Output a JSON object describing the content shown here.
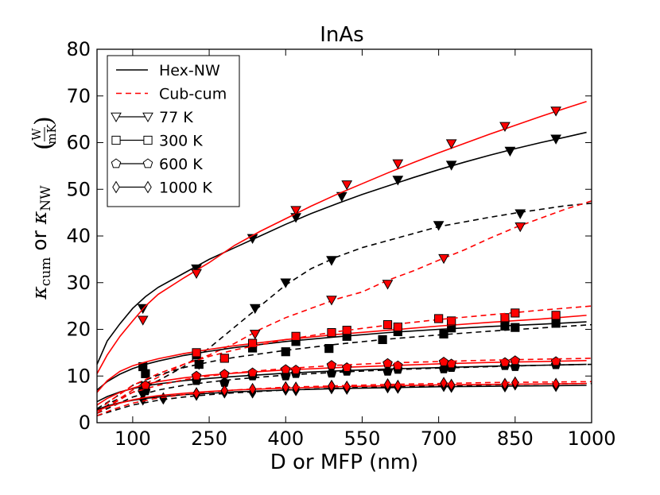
{
  "chart_data": {
    "type": "line",
    "title": "InAs",
    "xlabel": "D or MFP (nm)",
    "ylabel": "κ_cum or κ_NW (W/mK)",
    "ylabel_parts": {
      "kappa": "κ",
      "sub_cum": "cum",
      "or": " or ",
      "sub_nw": "NW",
      "unit_num": "W",
      "unit_den": "mK"
    },
    "xlim": [
      30,
      1000
    ],
    "ylim": [
      0,
      80
    ],
    "xticks": [
      100,
      250,
      400,
      550,
      700,
      850,
      1000
    ],
    "yticks": [
      0,
      10,
      20,
      30,
      40,
      50,
      60,
      70,
      80
    ],
    "grid": false,
    "legend_position": "top-left",
    "legend": {
      "lines": [
        {
          "label": "Hex-NW",
          "style": "solid",
          "color": "#000000"
        },
        {
          "label": "Cub-cum",
          "style": "dashed",
          "color": "#ff0000"
        }
      ],
      "markers": [
        {
          "label": "77 K",
          "marker": "triangle-down"
        },
        {
          "label": "300 K",
          "marker": "square"
        },
        {
          "label": "600 K",
          "marker": "pentagon"
        },
        {
          "label": "1000 K",
          "marker": "diamond"
        }
      ]
    },
    "series": [
      {
        "name": "Hex-NW 77 K",
        "group": "Hex-NW",
        "temperature": "77 K",
        "model": "nw",
        "line_color": "#000000",
        "line_style": "solid",
        "line_x": [
          30,
          50,
          75,
          100,
          125,
          150,
          200,
          250,
          300,
          350,
          400,
          450,
          500,
          550,
          600,
          650,
          700,
          750,
          800,
          850,
          900,
          950,
          990
        ],
        "line_y": [
          12.5,
          17.5,
          21.2,
          24.5,
          27.0,
          29.0,
          32.0,
          35.0,
          37.5,
          40.0,
          42.5,
          44.8,
          46.9,
          48.9,
          50.7,
          52.5,
          54.2,
          55.8,
          57.3,
          58.7,
          60.0,
          61.2,
          62.2
        ],
        "marker": "triangle-down",
        "marker_color": "#000000",
        "markers_x": [
          120,
          225,
          335,
          420,
          510,
          620,
          725,
          840,
          930
        ],
        "markers_y": [
          24.5,
          33.0,
          39.5,
          44.0,
          48.5,
          52.0,
          55.2,
          58.2,
          60.8
        ]
      },
      {
        "name": "Hex-cum 77 K",
        "group": "Hex-NW",
        "temperature": "77 K",
        "model": "cum",
        "line_color": "#000000",
        "line_style": "dashed",
        "line_x": [
          30,
          60,
          100,
          150,
          200,
          250,
          300,
          350,
          400,
          450,
          500,
          550,
          600,
          650,
          700,
          750,
          800,
          850,
          900,
          950,
          1000
        ],
        "line_y": [
          2.0,
          4.5,
          6.5,
          9.0,
          12.0,
          16.0,
          20.5,
          25.0,
          29.5,
          33.0,
          35.5,
          37.5,
          39.0,
          40.5,
          42.0,
          43.0,
          44.0,
          44.9,
          45.7,
          46.5,
          47.0
        ],
        "marker": "triangle-down",
        "marker_color": "#000000",
        "markers_x": [
          120,
          230,
          340,
          400,
          490,
          700,
          860
        ],
        "markers_y": [
          6.0,
          12.5,
          24.5,
          30.0,
          34.8,
          42.3,
          44.8
        ]
      },
      {
        "name": "Cub-NW 77 K",
        "group": "Cub",
        "temperature": "77 K",
        "model": "nw",
        "line_color": "#ff0000",
        "line_style": "solid",
        "line_x": [
          30,
          50,
          75,
          100,
          125,
          150,
          200,
          250,
          300,
          350,
          400,
          450,
          500,
          550,
          600,
          650,
          700,
          750,
          800,
          850,
          900,
          950,
          990
        ],
        "line_y": [
          10.5,
          14.5,
          18.5,
          21.8,
          25.0,
          27.5,
          31.0,
          34.3,
          38.0,
          41.0,
          43.7,
          46.4,
          48.9,
          51.2,
          53.5,
          55.7,
          57.8,
          59.8,
          61.8,
          63.7,
          65.6,
          67.4,
          68.8
        ],
        "marker": "triangle-down",
        "marker_color": "#ff0000",
        "markers_x": [
          120,
          225,
          420,
          520,
          620,
          725,
          830,
          930
        ],
        "markers_y": [
          22.0,
          32.0,
          45.5,
          51.0,
          55.5,
          59.8,
          63.5,
          66.8
        ]
      },
      {
        "name": "Cub-cum 77 K",
        "group": "Cub-cum",
        "temperature": "77 K",
        "model": "cum",
        "line_color": "#ff0000",
        "line_style": "dashed",
        "line_x": [
          30,
          100,
          200,
          250,
          300,
          350,
          400,
          450,
          500,
          550,
          600,
          650,
          700,
          750,
          800,
          850,
          900,
          950,
          1000
        ],
        "line_y": [
          2.0,
          7.0,
          12.5,
          14.5,
          17.0,
          20.0,
          22.5,
          24.5,
          26.5,
          28.0,
          30.5,
          32.5,
          34.8,
          37.0,
          39.5,
          41.8,
          43.8,
          45.8,
          47.5
        ],
        "marker": "triangle-down",
        "marker_color": "#ff0000",
        "markers_x": [
          340,
          490,
          600,
          710,
          860
        ],
        "markers_y": [
          19.0,
          26.3,
          29.7,
          35.2,
          42.0
        ]
      },
      {
        "name": "Hex-NW 300 K",
        "group": "Hex-NW",
        "temperature": "300 K",
        "model": "nw",
        "line_color": "#000000",
        "line_style": "solid",
        "line_x": [
          30,
          50,
          75,
          100,
          125,
          150,
          200,
          250,
          300,
          400,
          500,
          600,
          700,
          800,
          900,
          990
        ],
        "line_y": [
          7.0,
          8.8,
          10.4,
          11.6,
          12.5,
          13.2,
          14.4,
          15.3,
          16.1,
          17.4,
          18.4,
          19.3,
          20.0,
          20.6,
          21.1,
          21.6
        ],
        "marker": "square",
        "marker_color": "#000000",
        "markers_x": [
          120,
          225,
          335,
          420,
          520,
          620,
          725,
          830,
          930
        ],
        "markers_y": [
          12.0,
          14.5,
          16.0,
          17.4,
          18.5,
          19.5,
          20.3,
          20.7,
          21.3
        ]
      },
      {
        "name": "Hex-cum 300 K",
        "group": "Hex-NW",
        "temperature": "300 K",
        "model": "cum",
        "line_color": "#000000",
        "line_style": "dashed",
        "line_x": [
          30,
          60,
          100,
          150,
          200,
          250,
          300,
          400,
          500,
          600,
          700,
          800,
          900,
          1000
        ],
        "line_y": [
          3.0,
          5.0,
          8.0,
          10.2,
          11.8,
          13.0,
          14.0,
          15.5,
          16.8,
          17.9,
          18.8,
          19.6,
          20.3,
          21.0
        ],
        "marker": "square",
        "marker_color": "#000000",
        "markers_x": [
          125,
          230,
          400,
          485,
          590,
          710,
          850
        ],
        "markers_y": [
          10.5,
          12.5,
          15.2,
          15.9,
          17.8,
          19.0,
          20.4
        ]
      },
      {
        "name": "Cub-NW 300 K",
        "group": "Cub",
        "temperature": "300 K",
        "model": "nw",
        "line_color": "#ff0000",
        "line_style": "solid",
        "line_x": [
          30,
          50,
          75,
          100,
          125,
          150,
          200,
          250,
          300,
          400,
          500,
          600,
          700,
          800,
          900,
          990
        ],
        "line_y": [
          6.5,
          9.0,
          11.0,
          12.2,
          13.0,
          13.7,
          14.8,
          15.7,
          16.5,
          17.8,
          18.9,
          19.8,
          20.7,
          21.5,
          22.2,
          23.0
        ],
        "marker": "square",
        "marker_color": "#ff0000",
        "markers_x": [
          225,
          335,
          420,
          520,
          620,
          725,
          830,
          930
        ],
        "markers_y": [
          15.0,
          17.0,
          18.5,
          19.8,
          20.5,
          21.8,
          22.5,
          23.0
        ]
      },
      {
        "name": "Cub-cum 300 K",
        "group": "Cub-cum",
        "temperature": "300 K",
        "model": "cum",
        "line_color": "#ff0000",
        "line_style": "dashed",
        "line_x": [
          30,
          60,
          100,
          150,
          200,
          250,
          300,
          400,
          500,
          600,
          700,
          800,
          900,
          1000
        ],
        "line_y": [
          2.5,
          5.0,
          8.0,
          10.5,
          12.5,
          14.2,
          15.6,
          17.8,
          19.5,
          20.9,
          22.1,
          23.1,
          24.1,
          25.0
        ],
        "marker": "square",
        "marker_color": "#ff0000",
        "markers_x": [
          125,
          280,
          490,
          600,
          700,
          850
        ],
        "markers_y": [
          7.8,
          13.8,
          19.3,
          21.0,
          22.3,
          23.5
        ]
      },
      {
        "name": "Hex-NW 600 K",
        "group": "Hex-NW",
        "temperature": "600 K",
        "model": "nw",
        "line_color": "#000000",
        "line_style": "solid",
        "line_x": [
          30,
          50,
          75,
          100,
          125,
          150,
          200,
          250,
          300,
          400,
          500,
          600,
          700,
          800,
          900,
          990
        ],
        "line_y": [
          4.5,
          5.6,
          6.6,
          7.3,
          7.9,
          8.3,
          9.0,
          9.5,
          9.9,
          10.6,
          11.1,
          11.5,
          11.8,
          12.1,
          12.3,
          12.5
        ],
        "marker": "pentagon",
        "marker_color": "#000000",
        "markers_x": [
          120,
          225,
          335,
          420,
          520,
          620,
          725,
          830,
          930
        ],
        "markers_y": [
          7.5,
          9.0,
          10.0,
          10.5,
          11.0,
          11.4,
          11.8,
          12.2,
          12.4
        ]
      },
      {
        "name": "Hex-cum 600 K",
        "group": "Hex-NW",
        "temperature": "600 K",
        "model": "cum",
        "line_color": "#000000",
        "line_style": "dashed",
        "line_x": [
          30,
          60,
          100,
          150,
          200,
          250,
          300,
          400,
          500,
          600,
          700,
          800,
          900,
          1000
        ],
        "line_y": [
          2.0,
          3.5,
          5.5,
          7.0,
          8.0,
          8.7,
          9.3,
          10.2,
          10.8,
          11.3,
          11.7,
          12.0,
          12.3,
          12.5
        ],
        "marker": "pentagon",
        "marker_color": "#000000",
        "markers_x": [
          125,
          280,
          400,
          490,
          600,
          710,
          850
        ],
        "markers_y": [
          6.8,
          8.6,
          10.0,
          10.6,
          11.0,
          11.5,
          12.0
        ]
      },
      {
        "name": "Cub-NW 600 K",
        "group": "Cub",
        "temperature": "600 K",
        "model": "nw",
        "line_color": "#ff0000",
        "line_style": "solid",
        "line_x": [
          30,
          50,
          75,
          100,
          125,
          150,
          200,
          250,
          300,
          400,
          500,
          600,
          700,
          800,
          900,
          990
        ],
        "line_y": [
          3.8,
          5.2,
          6.5,
          7.4,
          8.2,
          8.8,
          9.6,
          10.2,
          10.6,
          11.3,
          11.8,
          12.2,
          12.6,
          12.9,
          13.1,
          13.3
        ],
        "marker": "pentagon",
        "marker_color": "#ff0000",
        "markers_x": [
          225,
          335,
          420,
          520,
          620,
          725,
          830,
          930
        ],
        "markers_y": [
          10.0,
          10.7,
          11.3,
          11.8,
          12.2,
          12.6,
          12.9,
          13.1
        ]
      },
      {
        "name": "Cub-cum 600 K",
        "group": "Cub-cum",
        "temperature": "600 K",
        "model": "cum",
        "line_color": "#ff0000",
        "line_style": "dashed",
        "line_x": [
          30,
          60,
          100,
          150,
          200,
          250,
          300,
          400,
          500,
          600,
          700,
          800,
          900,
          1000
        ],
        "line_y": [
          2.0,
          4.0,
          6.5,
          8.0,
          9.2,
          10.0,
          10.7,
          11.6,
          12.3,
          12.8,
          13.1,
          13.4,
          13.6,
          13.8
        ],
        "marker": "pentagon",
        "marker_color": "#ff0000",
        "markers_x": [
          125,
          280,
          400,
          490,
          600,
          710,
          850
        ],
        "markers_y": [
          8.0,
          10.4,
          11.4,
          12.3,
          12.7,
          13.0,
          13.3
        ]
      },
      {
        "name": "Hex-NW 1000 K",
        "group": "Hex-NW",
        "temperature": "1000 K",
        "model": "nw",
        "line_color": "#000000",
        "line_style": "solid",
        "line_x": [
          30,
          50,
          75,
          100,
          125,
          150,
          200,
          250,
          300,
          400,
          500,
          600,
          700,
          800,
          900,
          990
        ],
        "line_y": [
          2.8,
          3.6,
          4.3,
          4.8,
          5.2,
          5.5,
          6.0,
          6.3,
          6.6,
          7.0,
          7.3,
          7.5,
          7.7,
          7.8,
          7.9,
          8.0
        ],
        "marker": "diamond",
        "marker_color": "#000000",
        "markers_x": [
          120,
          225,
          335,
          420,
          520,
          620,
          725,
          830,
          930
        ],
        "markers_y": [
          5.0,
          6.0,
          6.5,
          7.0,
          7.3,
          7.5,
          7.7,
          7.8,
          7.9
        ]
      },
      {
        "name": "Hex-cum 1000 K",
        "group": "Hex-NW",
        "temperature": "1000 K",
        "model": "cum",
        "line_color": "#000000",
        "line_style": "dashed",
        "line_x": [
          30,
          60,
          100,
          150,
          200,
          250,
          300,
          400,
          500,
          600,
          700,
          800,
          900,
          1000
        ],
        "line_y": [
          1.5,
          2.5,
          3.8,
          4.8,
          5.5,
          6.0,
          6.4,
          7.0,
          7.4,
          7.7,
          7.9,
          8.1,
          8.3,
          8.4
        ],
        "marker": "diamond",
        "marker_color": "#000000",
        "markers_x": [
          160,
          280,
          400,
          490,
          600,
          710,
          850
        ],
        "markers_y": [
          5.2,
          6.5,
          7.1,
          7.4,
          7.6,
          7.9,
          8.2
        ]
      },
      {
        "name": "Cub-NW 1000 K",
        "group": "Cub",
        "temperature": "1000 K",
        "model": "nw",
        "line_color": "#ff0000",
        "line_style": "solid",
        "line_x": [
          30,
          50,
          75,
          100,
          125,
          150,
          200,
          250,
          300,
          400,
          500,
          600,
          700,
          800,
          900,
          990
        ],
        "line_y": [
          2.5,
          3.4,
          4.2,
          4.9,
          5.4,
          5.8,
          6.3,
          6.7,
          7.0,
          7.4,
          7.7,
          7.9,
          8.1,
          8.2,
          8.3,
          8.4
        ],
        "marker": "diamond",
        "marker_color": "#ff0000",
        "markers_x": [
          225,
          335,
          420,
          520,
          620,
          725,
          830,
          930
        ],
        "markers_y": [
          6.3,
          7.2,
          7.5,
          7.7,
          7.9,
          8.1,
          8.3,
          8.3
        ]
      },
      {
        "name": "Cub-cum 1000 K",
        "group": "Cub-cum",
        "temperature": "1000 K",
        "model": "cum",
        "line_color": "#ff0000",
        "line_style": "dashed",
        "line_x": [
          30,
          60,
          100,
          150,
          200,
          250,
          300,
          400,
          500,
          600,
          700,
          800,
          900,
          1000
        ],
        "line_y": [
          1.5,
          2.8,
          4.2,
          5.3,
          6.0,
          6.6,
          7.0,
          7.6,
          7.9,
          8.2,
          8.4,
          8.6,
          8.7,
          8.8
        ],
        "marker": "diamond",
        "marker_color": "#ff0000",
        "markers_x": [
          280,
          400,
          490,
          600,
          710,
          850
        ],
        "markers_y": [
          6.9,
          7.6,
          7.9,
          8.2,
          8.5,
          8.6
        ]
      }
    ]
  }
}
